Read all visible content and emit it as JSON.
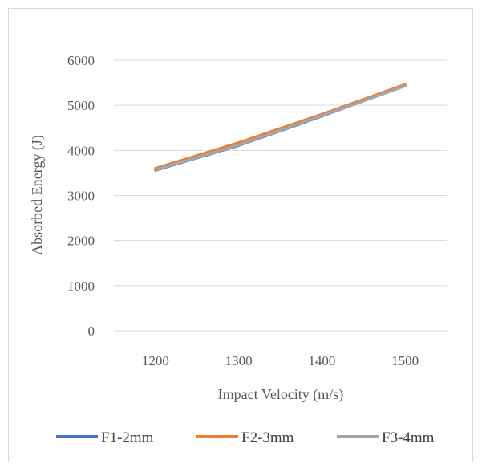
{
  "chart_data": {
    "type": "line",
    "title": "",
    "xlabel": "Impact Velocity (m/s)",
    "ylabel": "Absorbed Energy  (J)",
    "categories": [
      "1200",
      "1300",
      "1400",
      "1500"
    ],
    "x": [
      1200,
      1300,
      1400,
      1500
    ],
    "ylim": [
      0,
      6000
    ],
    "yticks": [
      "0",
      "1000",
      "2000",
      "3000",
      "4000",
      "5000",
      "6000"
    ],
    "grid": true,
    "legend_position": "bottom",
    "series": [
      {
        "name": "F1-2mm",
        "color": "#4472c4",
        "values": [
          3560,
          4110,
          4760,
          5440
        ]
      },
      {
        "name": "F2-3mm",
        "color": "#ed7d31",
        "values": [
          3600,
          4170,
          4800,
          5460
        ]
      },
      {
        "name": "F3-4mm",
        "color": "#a5a5a5",
        "values": [
          3570,
          4120,
          4770,
          5430
        ]
      }
    ]
  }
}
